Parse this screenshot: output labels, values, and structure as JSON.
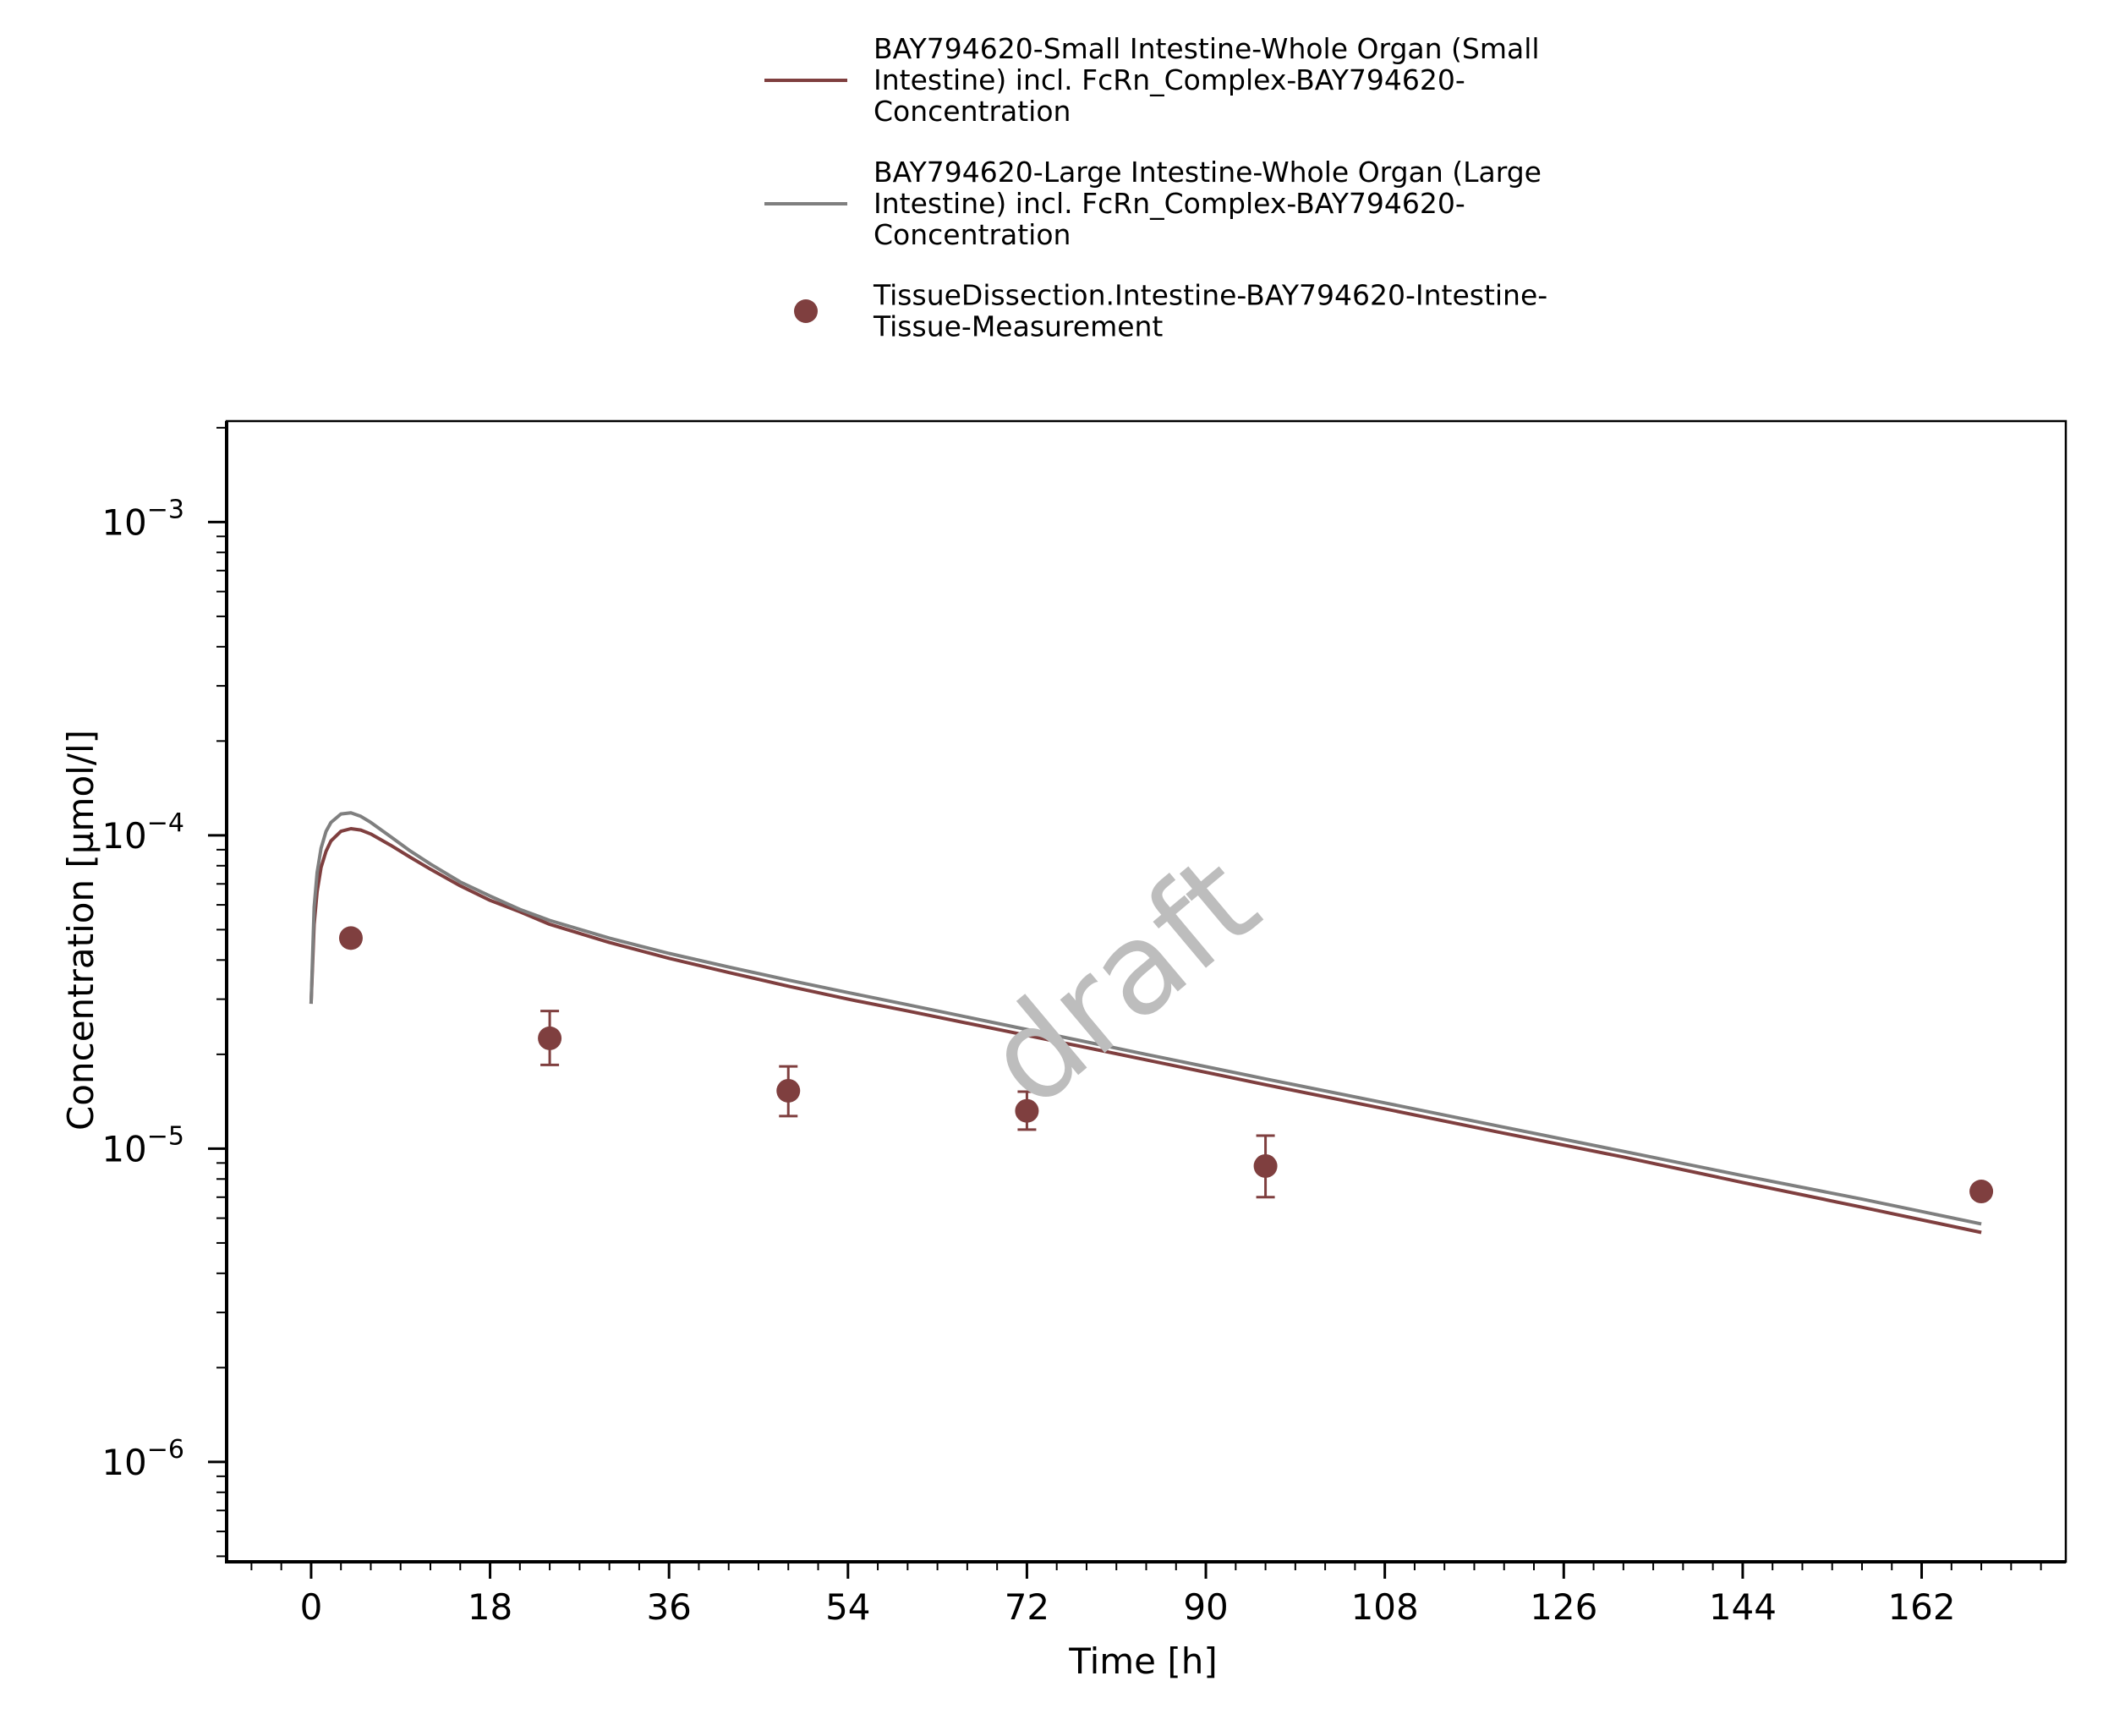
{
  "chart_data": {
    "type": "line",
    "xlabel": "Time [h]",
    "ylabel": "Concentration [µmol/l]",
    "x_scale": "linear",
    "y_scale": "log",
    "xlim": [
      -8.5,
      176.5
    ],
    "ylim": [
      4.8e-07,
      0.0021
    ],
    "x_ticks": [
      0,
      18,
      36,
      54,
      72,
      90,
      108,
      126,
      144,
      162
    ],
    "y_ticks": [
      {
        "value": 1e-06,
        "exponent": "−6"
      },
      {
        "value": 1e-05,
        "exponent": "−5"
      },
      {
        "value": 0.0001,
        "exponent": "−4"
      },
      {
        "value": 0.001,
        "exponent": "−3"
      }
    ],
    "grid": false,
    "legend_position": "top",
    "watermark": "draft",
    "series": [
      {
        "name": "BAY794620-Small Intestine-Whole Organ (Small Intestine) incl. FcRn_Complex-BAY794620-Concentration",
        "legend_lines": [
          "BAY794620-Small Intestine-Whole Organ (Small",
          "Intestine) incl. FcRn_Complex-BAY794620-",
          "Concentration"
        ],
        "type": "line",
        "color": "#7f3f3f",
        "x": [
          0,
          0.3,
          0.6,
          1,
          1.5,
          2,
          3,
          4,
          5,
          6,
          8,
          10,
          12,
          15,
          18,
          21,
          24,
          30,
          36,
          42,
          48,
          54,
          60,
          72,
          84,
          96,
          108,
          120,
          132,
          144,
          156,
          168
        ],
        "y": [
          2.9e-05,
          5.2e-05,
          6.6e-05,
          7.9e-05,
          8.9e-05,
          9.6e-05,
          0.000103,
          0.000105,
          0.000104,
          0.000101,
          9.3e-05,
          8.5e-05,
          7.8e-05,
          6.9e-05,
          6.2e-05,
          5.7e-05,
          5.2e-05,
          4.55e-05,
          4.05e-05,
          3.65e-05,
          3.3e-05,
          3e-05,
          2.75e-05,
          2.3e-05,
          1.92e-05,
          1.6e-05,
          1.34e-05,
          1.12e-05,
          9.4e-06,
          7.8e-06,
          6.5e-06,
          5.4e-06
        ]
      },
      {
        "name": "BAY794620-Large Intestine-Whole Organ (Large Intestine) incl. FcRn_Complex-BAY794620-Concentration",
        "legend_lines": [
          "BAY794620-Large Intestine-Whole Organ (Large",
          "Intestine) incl. FcRn_Complex-BAY794620-",
          "Concentration"
        ],
        "type": "line",
        "color": "#7f7f7f",
        "x": [
          0,
          0.3,
          0.6,
          1,
          1.5,
          2,
          3,
          4,
          5,
          6,
          8,
          10,
          12,
          15,
          18,
          21,
          24,
          30,
          36,
          42,
          48,
          54,
          60,
          72,
          84,
          96,
          108,
          120,
          132,
          144,
          156,
          168
        ],
        "y": [
          2.9e-05,
          5.9e-05,
          7.6e-05,
          9.1e-05,
          0.000103,
          0.00011,
          0.000117,
          0.000118,
          0.000115,
          0.00011,
          9.9e-05,
          8.9e-05,
          8.1e-05,
          7.1e-05,
          6.4e-05,
          5.8e-05,
          5.35e-05,
          4.7e-05,
          4.2e-05,
          3.8e-05,
          3.45e-05,
          3.15e-05,
          2.88e-05,
          2.4e-05,
          2e-05,
          1.67e-05,
          1.4e-05,
          1.17e-05,
          9.8e-06,
          8.2e-06,
          6.9e-06,
          5.75e-06
        ]
      },
      {
        "name": "TissueDissection.Intestine-BAY794620-Intestine-Tissue-Measurement",
        "legend_lines": [
          "TissueDissection.Intestine-BAY794620-Intestine-",
          "Tissue-Measurement"
        ],
        "type": "scatter",
        "color": "#7f3f3f",
        "x": [
          4,
          24,
          48,
          72,
          96,
          168
        ],
        "y": [
          4.7e-05,
          2.25e-05,
          1.53e-05,
          1.32e-05,
          8.8e-06,
          7.3e-06
        ],
        "y_err_low": [
          4.5e-05,
          1.85e-05,
          1.27e-05,
          1.15e-05,
          7e-06,
          7.1e-06
        ],
        "y_err_high": [
          4.9e-05,
          2.75e-05,
          1.83e-05,
          1.52e-05,
          1.1e-05,
          7.5e-06
        ]
      }
    ]
  }
}
